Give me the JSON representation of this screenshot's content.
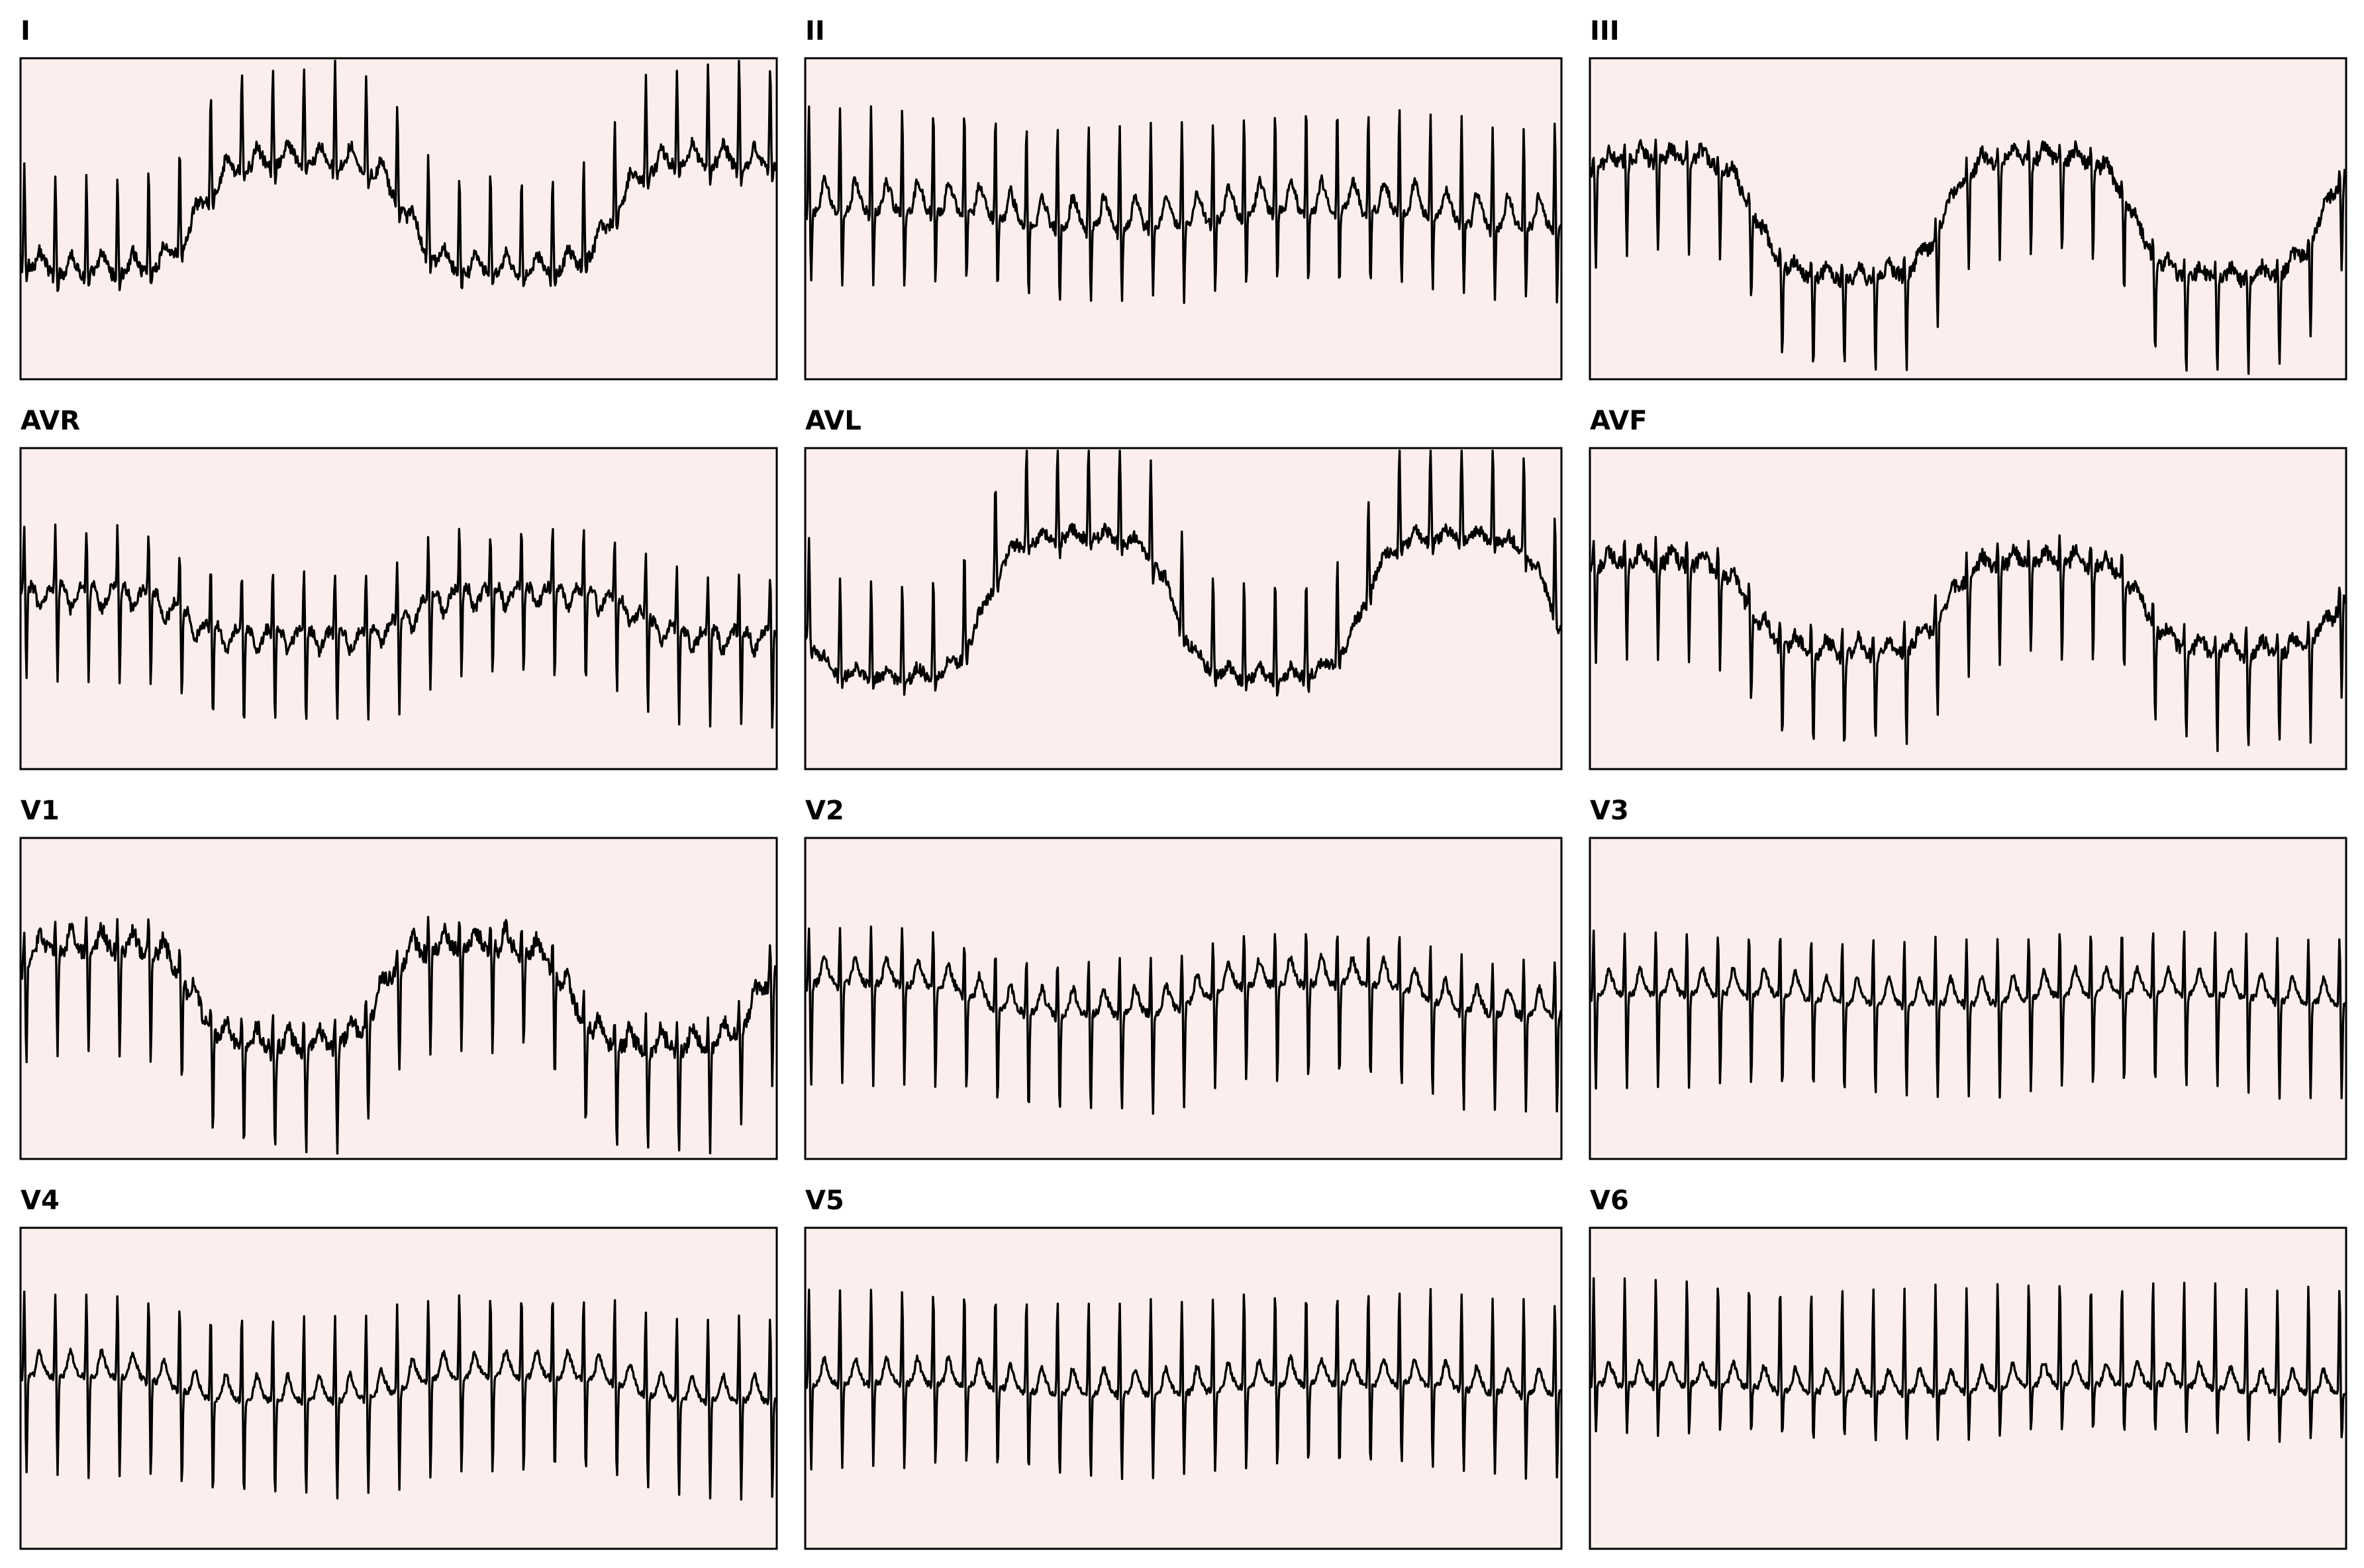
{
  "chart_data": {
    "type": "line",
    "title": "",
    "layout": "4 rows x 3 columns",
    "sampling_hz": 100,
    "duration_s": 10,
    "heart_rate_bpm": 146,
    "ylim": [
      -1.6,
      1.6
    ],
    "grid": false,
    "colors": {
      "panel_background": "#fdeeee",
      "trace": "#000000",
      "border": "#000000"
    },
    "leads": [
      {
        "name": "I",
        "qrs": 1.0,
        "q": -0.12,
        "s": -0.18,
        "t": 0.2,
        "p": 0.08,
        "noise": 0.06,
        "drift_amp": 0.55,
        "drift_period_s": 5.5,
        "drift_phase": 3.6,
        "first_beat_s": 0.05
      },
      {
        "name": "II",
        "qrs": 1.05,
        "q": -0.1,
        "s": -0.75,
        "t": 0.3,
        "p": 0.12,
        "noise": 0.05,
        "drift_amp": 0.08,
        "drift_period_s": 6.0,
        "drift_phase": 0.5,
        "first_beat_s": 0.05
      },
      {
        "name": "III",
        "qrs": 0.15,
        "q": -0.05,
        "s": -0.95,
        "t": 0.12,
        "p": 0.04,
        "noise": 0.07,
        "drift_amp": 0.6,
        "drift_period_s": 5.0,
        "drift_phase": 0.4,
        "first_beat_s": 0.05
      },
      {
        "name": "AVR",
        "qrs": 0.6,
        "q": -0.05,
        "s": -0.95,
        "t": -0.22,
        "p": -0.08,
        "noise": 0.06,
        "drift_amp": 0.22,
        "drift_period_s": 6.0,
        "drift_phase": 0.9,
        "first_beat_s": 0.05
      },
      {
        "name": "AVL",
        "qrs": 1.0,
        "q": -0.08,
        "s": -0.15,
        "t": 0.1,
        "p": 0.04,
        "noise": 0.06,
        "drift_amp": 0.7,
        "drift_period_s": 5.0,
        "drift_phase": 3.3,
        "first_beat_s": 0.05
      },
      {
        "name": "AVF",
        "qrs": 0.25,
        "q": -0.05,
        "s": -0.95,
        "t": 0.15,
        "p": 0.06,
        "noise": 0.07,
        "drift_amp": 0.45,
        "drift_period_s": 5.2,
        "drift_phase": 0.6,
        "first_beat_s": 0.05
      },
      {
        "name": "V1",
        "qrs": 0.3,
        "q": -0.05,
        "s": -1.05,
        "t": 0.2,
        "p": 0.05,
        "noise": 0.08,
        "drift_amp": 0.5,
        "drift_period_s": 5.0,
        "drift_phase": 0.3,
        "first_beat_s": 0.05
      },
      {
        "name": "V2",
        "qrs": 0.55,
        "q": -0.05,
        "s": -1.0,
        "t": 0.25,
        "p": 0.06,
        "noise": 0.04,
        "drift_amp": 0.15,
        "drift_period_s": 6.0,
        "drift_phase": 0.8,
        "first_beat_s": 0.05
      },
      {
        "name": "V3",
        "qrs": 0.65,
        "q": -0.05,
        "s": -0.95,
        "t": 0.25,
        "p": 0.06,
        "noise": 0.03,
        "drift_amp": 0.05,
        "drift_period_s": 6.0,
        "drift_phase": 0.2,
        "first_beat_s": 0.05
      },
      {
        "name": "V4",
        "qrs": 0.85,
        "q": -0.05,
        "s": -1.0,
        "t": 0.25,
        "p": 0.06,
        "noise": 0.03,
        "drift_amp": 0.12,
        "drift_period_s": 6.0,
        "drift_phase": 1.0,
        "first_beat_s": 0.05
      },
      {
        "name": "V5",
        "qrs": 0.95,
        "q": -0.05,
        "s": -0.85,
        "t": 0.25,
        "p": 0.06,
        "noise": 0.03,
        "drift_amp": 0.05,
        "drift_period_s": 6.0,
        "drift_phase": 0.4,
        "first_beat_s": 0.05
      },
      {
        "name": "V6",
        "qrs": 1.05,
        "q": -0.05,
        "s": -0.5,
        "t": 0.22,
        "p": 0.06,
        "noise": 0.03,
        "drift_amp": 0.04,
        "drift_period_s": 6.0,
        "drift_phase": 0.7,
        "first_beat_s": 0.05
      }
    ]
  }
}
